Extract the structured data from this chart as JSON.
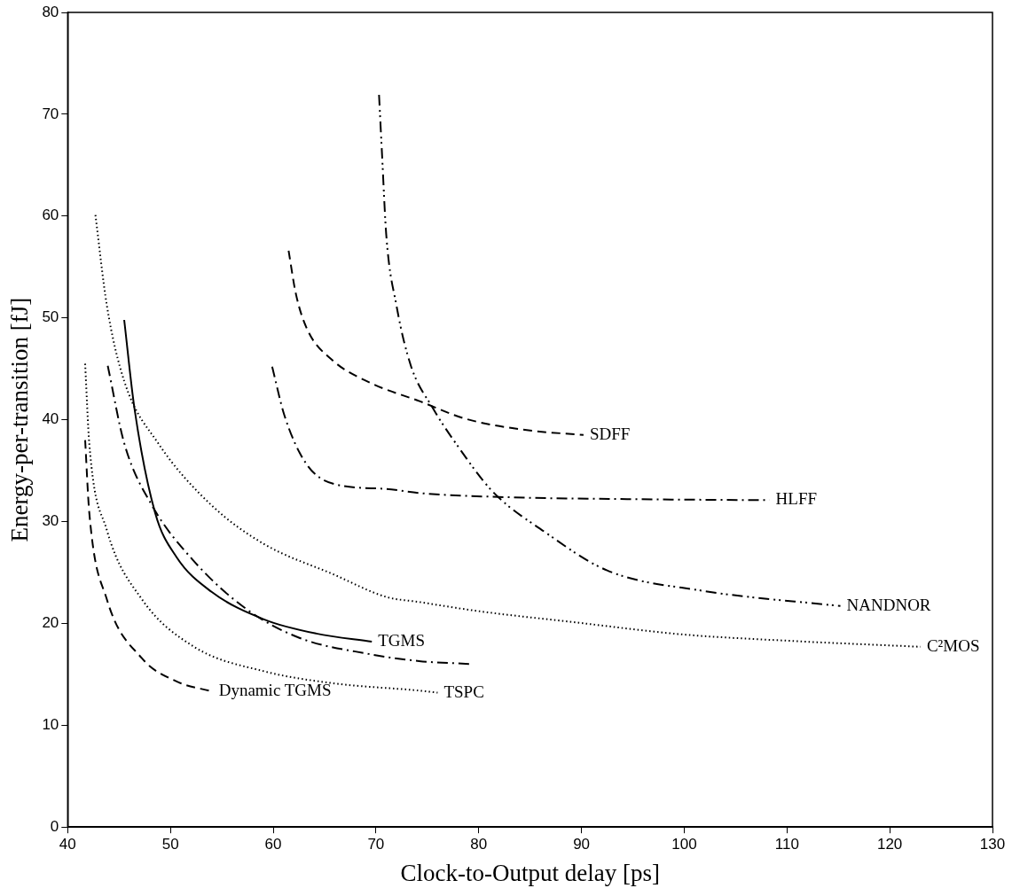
{
  "chart_data": {
    "type": "line",
    "xlabel": "Clock-to-Output delay [ps]",
    "ylabel": "Energy-per-transition [fJ]",
    "xlim": [
      40,
      130
    ],
    "xticks": [
      40,
      50,
      60,
      70,
      80,
      90,
      100,
      110,
      120,
      130
    ],
    "ylim": [
      0,
      80
    ],
    "yticks": [
      0,
      10,
      20,
      30,
      40,
      50,
      60,
      70,
      80
    ],
    "grid": false,
    "legend": false,
    "marker": "none",
    "series": [
      {
        "name": "SDFF",
        "color": "#000000",
        "line_style": "dashed",
        "x": [
          61.5,
          62.2,
          63.3,
          65.7,
          69.5,
          74.3,
          78.7,
          84.5,
          90.2
        ],
        "values": [
          56.6,
          52.4,
          48.9,
          45.9,
          43.6,
          41.8,
          40.1,
          39.0,
          38.5
        ]
      },
      {
        "name": "NANDNOR",
        "color": "#000000",
        "line_style": "dashdotdot",
        "x": [
          70.3,
          70.6,
          71.0,
          72.0,
          73.4,
          75.5,
          77.9,
          81.4,
          86.4,
          92.5,
          101.8,
          115.2
        ],
        "values": [
          71.9,
          65.9,
          58.2,
          51.2,
          45.3,
          41.2,
          37.5,
          32.9,
          29.0,
          25.2,
          23.2,
          21.7
        ]
      },
      {
        "name": "HLFF",
        "color": "#000000",
        "line_style": "dashdot",
        "x": [
          59.9,
          61.1,
          63.2,
          65.9,
          71.0,
          74.2,
          82.5,
          95.0,
          108.3
        ],
        "values": [
          45.2,
          40.4,
          35.7,
          33.7,
          33.2,
          32.8,
          32.4,
          32.2,
          32.1
        ]
      },
      {
        "name": "C²MOS",
        "color": "#000000",
        "line_style": "dotted",
        "x": [
          42.7,
          43.8,
          45.5,
          48.8,
          54.0,
          59.1,
          65.9,
          71.0,
          74.2,
          80.0,
          89.4,
          100.0,
          110.0,
          123.0
        ],
        "values": [
          60.1,
          51.3,
          43.8,
          37.7,
          31.6,
          27.8,
          24.8,
          22.6,
          22.1,
          21.2,
          20.1,
          18.9,
          18.3,
          17.7
        ]
      },
      {
        "name": "TGMS",
        "color": "#000000",
        "line_style": "solid",
        "x": [
          45.5,
          46.5,
          48.5,
          50.6,
          54.0,
          59.1,
          64.2,
          69.6
        ],
        "values": [
          49.8,
          41.1,
          30.9,
          26.5,
          23.1,
          20.4,
          19.0,
          18.2
        ]
      },
      {
        "color": "#000000",
        "line_style": "dashdot",
        "x": [
          43.9,
          45.5,
          48.2,
          52.3,
          57.4,
          62.5,
          69.3,
          74.2,
          79.4
        ],
        "values": [
          45.3,
          37.7,
          31.6,
          26.1,
          21.4,
          18.6,
          17.0,
          16.3,
          16.0
        ]
      },
      {
        "name": "TSPC",
        "color": "#000000",
        "line_style": "dotted",
        "x": [
          41.7,
          42.1,
          43.8,
          47.2,
          52.3,
          59.1,
          66.0,
          74.2,
          76.0
        ],
        "values": [
          45.5,
          37.7,
          29.2,
          22.4,
          17.7,
          15.3,
          14.1,
          13.4,
          13.2
        ]
      },
      {
        "name": "Dynamic TGMS",
        "color": "#000000",
        "line_style": "dashed",
        "x": [
          41.7,
          42.1,
          43.8,
          47.2,
          50.6,
          54.1
        ],
        "values": [
          38.0,
          30.9,
          22.4,
          16.6,
          14.3,
          13.3
        ]
      }
    ]
  }
}
